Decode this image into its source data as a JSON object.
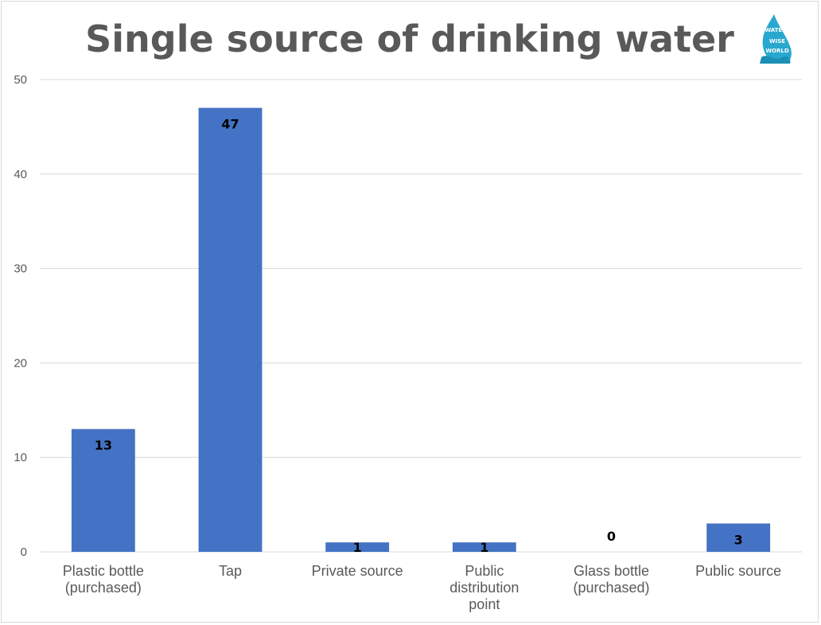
{
  "chart_data": {
    "type": "bar",
    "title": "Single source of drinking water",
    "categories": [
      [
        "Plastic bottle",
        "(purchased)"
      ],
      [
        "Tap"
      ],
      [
        "Private source"
      ],
      [
        "Public",
        "distribution",
        "point"
      ],
      [
        "Glass bottle",
        "(purchased)"
      ],
      [
        "Public source"
      ]
    ],
    "values": [
      13,
      47,
      1,
      1,
      0,
      3
    ],
    "ylim": [
      0,
      50
    ],
    "yticks": [
      0,
      10,
      20,
      30,
      40,
      50
    ],
    "grid": true,
    "xlabel": "",
    "ylabel": "",
    "bar_color": "#4472c4"
  },
  "logo": {
    "name": "water-wise-logo",
    "text": [
      "WATER",
      "WISE",
      "WORLD"
    ],
    "color": "#29a8cf"
  }
}
